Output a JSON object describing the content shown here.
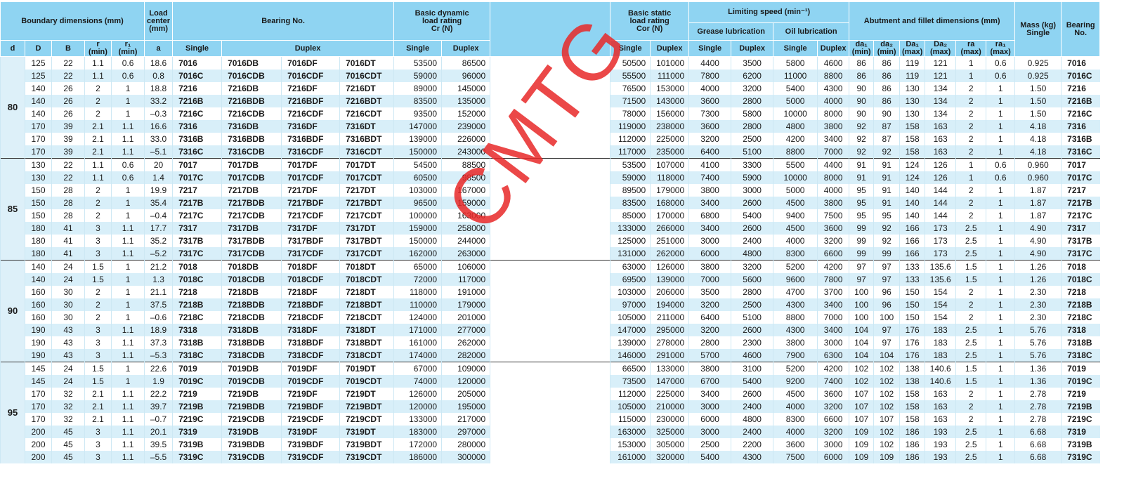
{
  "header": {
    "boundary": "Boundary dimensions (mm)",
    "load_center": "Load center\n(mm)",
    "bearing_no": "Bearing No.",
    "dynamic": "Basic dynamic\nload rating\nCr (N)",
    "static": "Basic static\nload rating\nCor (N)",
    "speed": "Limiting speed (min⁻¹)",
    "abutment": "Abutment and fillet dimensions (mm)",
    "mass": "Mass (kg)\nSingle",
    "bearing_no_end": "Bearing\nNo.",
    "grease": "Grease lubrication",
    "oil": "Oil lubrication",
    "d": "d",
    "D": "D",
    "B": "B",
    "r": "r\n(min)",
    "r1": "r₁\n(min)",
    "a": "a",
    "bn_single": "Single",
    "bn_duplex": "Duplex",
    "cr_single": "Single",
    "cr_duplex": "Duplex",
    "cor_single": "Single",
    "cor_duplex": "Duplex",
    "grease_single": "Single",
    "grease_duplex": "Duplex",
    "oil_single": "Single",
    "oil_duplex": "Duplex",
    "da1": "da₁\n(min)",
    "da2": "da₂\n(min)",
    "Da1": "Da₁\n(max)",
    "Da2": "Da₂\n(max)",
    "ra": "ra\n(max)",
    "ra1": "ra₁\n(max)"
  },
  "watermark": "CMTG",
  "groups": [
    {
      "d": "80",
      "rows": [
        [
          "125",
          "22",
          "1.1",
          "0.6",
          "18.6",
          "7016",
          "7016DB",
          "7016DF",
          "7016DT",
          "53500",
          "86500",
          "50500",
          "101000",
          "4400",
          "3500",
          "5800",
          "4600",
          "86",
          "86",
          "119",
          "121",
          "1",
          "0.6",
          "0.925",
          "7016"
        ],
        [
          "125",
          "22",
          "1.1",
          "0.6",
          "0.8",
          "7016C",
          "7016CDB",
          "7016CDF",
          "7016CDT",
          "59000",
          "96000",
          "55500",
          "111000",
          "7800",
          "6200",
          "11000",
          "8800",
          "86",
          "86",
          "119",
          "121",
          "1",
          "0.6",
          "0.925",
          "7016C"
        ],
        [
          "140",
          "26",
          "2",
          "1",
          "18.8",
          "7216",
          "7216DB",
          "7216DF",
          "7216DT",
          "89000",
          "145000",
          "76500",
          "153000",
          "4000",
          "3200",
          "5400",
          "4300",
          "90",
          "86",
          "130",
          "134",
          "2",
          "1",
          "1.50",
          "7216"
        ],
        [
          "140",
          "26",
          "2",
          "1",
          "33.2",
          "7216B",
          "7216BDB",
          "7216BDF",
          "7216BDT",
          "83500",
          "135000",
          "71500",
          "143000",
          "3600",
          "2800",
          "5000",
          "4000",
          "90",
          "86",
          "130",
          "134",
          "2",
          "1",
          "1.50",
          "7216B"
        ],
        [
          "140",
          "26",
          "2",
          "1",
          "–0.3",
          "7216C",
          "7216CDB",
          "7216CDF",
          "7216CDT",
          "93500",
          "152000",
          "78000",
          "156000",
          "7300",
          "5800",
          "10000",
          "8000",
          "90",
          "90",
          "130",
          "134",
          "2",
          "1",
          "1.50",
          "7216C"
        ],
        [
          "170",
          "39",
          "2.1",
          "1.1",
          "16.6",
          "7316",
          "7316DB",
          "7316DF",
          "7316DT",
          "147000",
          "239000",
          "119000",
          "238000",
          "3600",
          "2800",
          "4800",
          "3800",
          "92",
          "87",
          "158",
          "163",
          "2",
          "1",
          "4.18",
          "7316"
        ],
        [
          "170",
          "39",
          "2.1",
          "1.1",
          "33.0",
          "7316B",
          "7316BDB",
          "7316BDF",
          "7316BDT",
          "139000",
          "226000",
          "112000",
          "225000",
          "3200",
          "2500",
          "4200",
          "3400",
          "92",
          "87",
          "158",
          "163",
          "2",
          "1",
          "4.18",
          "7316B"
        ],
        [
          "170",
          "39",
          "2.1",
          "1.1",
          "–5.1",
          "7316C",
          "7316CDB",
          "7316CDF",
          "7316CDT",
          "150000",
          "243000",
          "117000",
          "235000",
          "6400",
          "5100",
          "8800",
          "7000",
          "92",
          "92",
          "158",
          "163",
          "2",
          "1",
          "4.18",
          "7316C"
        ]
      ]
    },
    {
      "d": "85",
      "rows": [
        [
          "130",
          "22",
          "1.1",
          "0.6",
          "20",
          "7017",
          "7017DB",
          "7017DF",
          "7017DT",
          "54500",
          "88500",
          "53500",
          "107000",
          "4100",
          "3300",
          "5500",
          "4400",
          "91",
          "91",
          "124",
          "126",
          "1",
          "0.6",
          "0.960",
          "7017"
        ],
        [
          "130",
          "22",
          "1.1",
          "0.6",
          "1.4",
          "7017C",
          "7017CDB",
          "7017CDF",
          "7017CDT",
          "60500",
          "98500",
          "59000",
          "118000",
          "7400",
          "5900",
          "10000",
          "8000",
          "91",
          "91",
          "124",
          "126",
          "1",
          "0.6",
          "0.960",
          "7017C"
        ],
        [
          "150",
          "28",
          "2",
          "1",
          "19.9",
          "7217",
          "7217DB",
          "7217DF",
          "7217DT",
          "103000",
          "167000",
          "89500",
          "179000",
          "3800",
          "3000",
          "5000",
          "4000",
          "95",
          "91",
          "140",
          "144",
          "2",
          "1",
          "1.87",
          "7217"
        ],
        [
          "150",
          "28",
          "2",
          "1",
          "35.4",
          "7217B",
          "7217BDB",
          "7217BDF",
          "7217BDT",
          "96500",
          "159000",
          "83500",
          "168000",
          "3400",
          "2600",
          "4500",
          "3800",
          "95",
          "91",
          "140",
          "144",
          "2",
          "1",
          "1.87",
          "7217B"
        ],
        [
          "150",
          "28",
          "2",
          "1",
          "–0.4",
          "7217C",
          "7217CDB",
          "7217CDF",
          "7217CDT",
          "100000",
          "163000",
          "85000",
          "170000",
          "6800",
          "5400",
          "9400",
          "7500",
          "95",
          "95",
          "140",
          "144",
          "2",
          "1",
          "1.87",
          "7217C"
        ],
        [
          "180",
          "41",
          "3",
          "1.1",
          "17.7",
          "7317",
          "7317DB",
          "7317DF",
          "7317DT",
          "159000",
          "258000",
          "133000",
          "266000",
          "3400",
          "2600",
          "4500",
          "3600",
          "99",
          "92",
          "166",
          "173",
          "2.5",
          "1",
          "4.90",
          "7317"
        ],
        [
          "180",
          "41",
          "3",
          "1.1",
          "35.2",
          "7317B",
          "7317BDB",
          "7317BDF",
          "7317BDT",
          "150000",
          "244000",
          "125000",
          "251000",
          "3000",
          "2400",
          "4000",
          "3200",
          "99",
          "92",
          "166",
          "173",
          "2.5",
          "1",
          "4.90",
          "7317B"
        ],
        [
          "180",
          "41",
          "3",
          "1.1",
          "–5.2",
          "7317C",
          "7317CDB",
          "7317CDF",
          "7317CDT",
          "162000",
          "263000",
          "131000",
          "262000",
          "6000",
          "4800",
          "8300",
          "6600",
          "99",
          "99",
          "166",
          "173",
          "2.5",
          "1",
          "4.90",
          "7317C"
        ]
      ]
    },
    {
      "d": "90",
      "rows": [
        [
          "140",
          "24",
          "1.5",
          "1",
          "21.2",
          "7018",
          "7018DB",
          "7018DF",
          "7018DT",
          "65000",
          "106000",
          "63000",
          "126000",
          "3800",
          "3200",
          "5200",
          "4200",
          "97",
          "97",
          "133",
          "135.6",
          "1.5",
          "1",
          "1.26",
          "7018"
        ],
        [
          "140",
          "24",
          "1.5",
          "1",
          "1.3",
          "7018C",
          "7018CDB",
          "7018CDF",
          "7018CDT",
          "72000",
          "117000",
          "69500",
          "139000",
          "7000",
          "5600",
          "9600",
          "7800",
          "97",
          "97",
          "133",
          "135.6",
          "1.5",
          "1",
          "1.26",
          "7018C"
        ],
        [
          "160",
          "30",
          "2",
          "1",
          "21.1",
          "7218",
          "7218DB",
          "7218DF",
          "7218DT",
          "118000",
          "191000",
          "103000",
          "206000",
          "3500",
          "2800",
          "4700",
          "3700",
          "100",
          "96",
          "150",
          "154",
          "2",
          "1",
          "2.30",
          "7218"
        ],
        [
          "160",
          "30",
          "2",
          "1",
          "37.5",
          "7218B",
          "7218BDB",
          "7218BDF",
          "7218BDT",
          "110000",
          "179000",
          "97000",
          "194000",
          "3200",
          "2500",
          "4300",
          "3400",
          "100",
          "96",
          "150",
          "154",
          "2",
          "1",
          "2.30",
          "7218B"
        ],
        [
          "160",
          "30",
          "2",
          "1",
          "–0.6",
          "7218C",
          "7218CDB",
          "7218CDF",
          "7218CDT",
          "124000",
          "201000",
          "105000",
          "211000",
          "6400",
          "5100",
          "8800",
          "7000",
          "100",
          "100",
          "150",
          "154",
          "2",
          "1",
          "2.30",
          "7218C"
        ],
        [
          "190",
          "43",
          "3",
          "1.1",
          "18.9",
          "7318",
          "7318DB",
          "7318DF",
          "7318DT",
          "171000",
          "277000",
          "147000",
          "295000",
          "3200",
          "2600",
          "4300",
          "3400",
          "104",
          "97",
          "176",
          "183",
          "2.5",
          "1",
          "5.76",
          "7318"
        ],
        [
          "190",
          "43",
          "3",
          "1.1",
          "37.3",
          "7318B",
          "7318BDB",
          "7318BDF",
          "7318BDT",
          "161000",
          "262000",
          "139000",
          "278000",
          "2800",
          "2300",
          "3800",
          "3000",
          "104",
          "97",
          "176",
          "183",
          "2.5",
          "1",
          "5.76",
          "7318B"
        ],
        [
          "190",
          "43",
          "3",
          "1.1",
          "–5.3",
          "7318C",
          "7318CDB",
          "7318CDF",
          "7318CDT",
          "174000",
          "282000",
          "146000",
          "291000",
          "5700",
          "4600",
          "7900",
          "6300",
          "104",
          "104",
          "176",
          "183",
          "2.5",
          "1",
          "5.76",
          "7318C"
        ]
      ]
    },
    {
      "d": "95",
      "rows": [
        [
          "145",
          "24",
          "1.5",
          "1",
          "22.6",
          "7019",
          "7019DB",
          "7019DF",
          "7019DT",
          "67000",
          "109000",
          "66500",
          "133000",
          "3800",
          "3100",
          "5200",
          "4200",
          "102",
          "102",
          "138",
          "140.6",
          "1.5",
          "1",
          "1.36",
          "7019"
        ],
        [
          "145",
          "24",
          "1.5",
          "1",
          "1.9",
          "7019C",
          "7019CDB",
          "7019CDF",
          "7019CDT",
          "74000",
          "120000",
          "73500",
          "147000",
          "6700",
          "5400",
          "9200",
          "7400",
          "102",
          "102",
          "138",
          "140.6",
          "1.5",
          "1",
          "1.36",
          "7019C"
        ],
        [
          "170",
          "32",
          "2.1",
          "1.1",
          "22.2",
          "7219",
          "7219DB",
          "7219DF",
          "7219DT",
          "126000",
          "205000",
          "112000",
          "225000",
          "3400",
          "2600",
          "4500",
          "3600",
          "107",
          "102",
          "158",
          "163",
          "2",
          "1",
          "2.78",
          "7219"
        ],
        [
          "170",
          "32",
          "2.1",
          "1.1",
          "39.7",
          "7219B",
          "7219BDB",
          "7219BDF",
          "7219BDT",
          "120000",
          "195000",
          "105000",
          "210000",
          "3000",
          "2400",
          "4000",
          "3200",
          "107",
          "102",
          "158",
          "163",
          "2",
          "1",
          "2.78",
          "7219B"
        ],
        [
          "170",
          "32",
          "2.1",
          "1.1",
          "–0.7",
          "7219C",
          "7219CDB",
          "7219CDF",
          "7219CDT",
          "133000",
          "217000",
          "115000",
          "230000",
          "6000",
          "4800",
          "8300",
          "6600",
          "107",
          "107",
          "158",
          "163",
          "2",
          "1",
          "2.78",
          "7219C"
        ],
        [
          "200",
          "45",
          "3",
          "1.1",
          "20.1",
          "7319",
          "7319DB",
          "7319DF",
          "7319DT",
          "183000",
          "297000",
          "163000",
          "325000",
          "3000",
          "2400",
          "4000",
          "3200",
          "109",
          "102",
          "186",
          "193",
          "2.5",
          "1",
          "6.68",
          "7319"
        ],
        [
          "200",
          "45",
          "3",
          "1.1",
          "39.5",
          "7319B",
          "7319BDB",
          "7319BDF",
          "7319BDT",
          "172000",
          "280000",
          "153000",
          "305000",
          "2500",
          "2200",
          "3600",
          "3000",
          "109",
          "102",
          "186",
          "193",
          "2.5",
          "1",
          "6.68",
          "7319B"
        ],
        [
          "200",
          "45",
          "3",
          "1.1",
          "–5.5",
          "7319C",
          "7319CDB",
          "7319CDF",
          "7319CDT",
          "186000",
          "300000",
          "161000",
          "320000",
          "5400",
          "4300",
          "7500",
          "6000",
          "109",
          "109",
          "186",
          "193",
          "2.5",
          "1",
          "6.68",
          "7319C"
        ]
      ]
    }
  ]
}
